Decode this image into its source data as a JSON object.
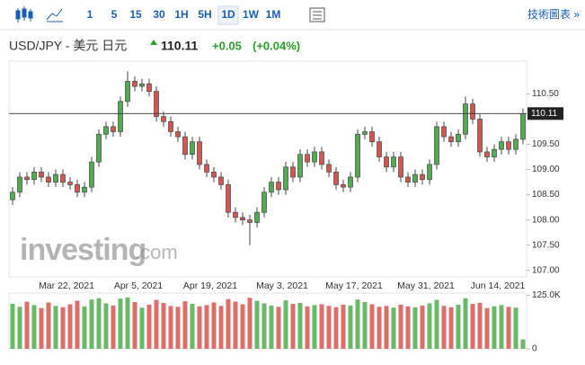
{
  "toolbar": {
    "intervals": [
      "1",
      "5",
      "15",
      "30",
      "1H",
      "5H",
      "1D",
      "1W",
      "1M"
    ],
    "selected": 6,
    "link": "技術圖表 »"
  },
  "chart_data": {
    "type": "candlestick",
    "title": "USD/JPY - 美元 日元",
    "price": 110.11,
    "change": "+0.05",
    "change_pct": "(+0.04%)",
    "watermark": {
      "brand": "investing",
      "suffix": ".com"
    },
    "up_color": "#4cae4c",
    "down_color": "#d9534f",
    "categories": [
      null,
      null,
      null,
      null,
      null,
      null,
      null,
      null,
      "Mar 22, 2021",
      null,
      null,
      null,
      null,
      null,
      null,
      null,
      null,
      null,
      "Apr 5, 2021",
      null,
      null,
      null,
      null,
      null,
      null,
      null,
      null,
      null,
      "Apr 19, 2021",
      null,
      null,
      null,
      null,
      null,
      null,
      null,
      null,
      null,
      "May 3, 2021",
      null,
      null,
      null,
      null,
      null,
      null,
      null,
      null,
      null,
      "May 17, 2021",
      null,
      null,
      null,
      null,
      null,
      null,
      null,
      null,
      null,
      "May 31, 2021",
      null,
      null,
      null,
      null,
      null,
      null,
      null,
      null,
      null,
      "Jun 14, 2021",
      null,
      null,
      null
    ],
    "open": [
      108.4,
      108.55,
      108.85,
      108.8,
      108.95,
      108.85,
      108.75,
      108.9,
      108.75,
      108.7,
      108.55,
      108.65,
      109.15,
      109.7,
      109.85,
      109.75,
      110.35,
      110.75,
      110.65,
      110.7,
      110.55,
      110.05,
      109.95,
      109.75,
      109.65,
      109.3,
      109.55,
      109.1,
      108.95,
      108.85,
      108.7,
      108.15,
      108.05,
      108.0,
      107.95,
      108.15,
      108.55,
      108.75,
      108.6,
      109.05,
      108.85,
      109.3,
      109.15,
      109.35,
      109.1,
      108.95,
      108.7,
      108.65,
      108.85,
      109.7,
      109.75,
      109.55,
      109.25,
      109.05,
      109.25,
      108.85,
      108.75,
      108.9,
      108.8,
      109.1,
      109.85,
      109.65,
      109.55,
      109.7,
      110.3,
      110.0,
      109.35,
      109.25,
      109.4,
      109.55,
      109.4,
      109.6
    ],
    "high": [
      108.65,
      108.95,
      108.95,
      109.05,
      109.05,
      108.95,
      109.0,
      109.0,
      108.85,
      108.8,
      108.75,
      109.25,
      109.8,
      109.95,
      109.95,
      110.45,
      110.95,
      110.85,
      110.8,
      110.8,
      110.65,
      110.15,
      110.05,
      109.85,
      109.75,
      109.65,
      109.65,
      109.2,
      109.05,
      108.95,
      108.8,
      108.25,
      108.15,
      108.1,
      108.25,
      108.65,
      108.85,
      108.85,
      109.15,
      109.15,
      109.4,
      109.4,
      109.45,
      109.45,
      109.2,
      109.05,
      108.8,
      108.95,
      109.8,
      109.85,
      109.85,
      109.65,
      109.35,
      109.35,
      109.35,
      108.95,
      109.0,
      109.0,
      109.2,
      109.95,
      109.95,
      109.75,
      109.8,
      110.45,
      110.4,
      110.1,
      109.45,
      109.5,
      109.65,
      109.65,
      109.7,
      110.21
    ],
    "low": [
      108.3,
      108.45,
      108.7,
      108.7,
      108.75,
      108.65,
      108.65,
      108.65,
      108.6,
      108.45,
      108.45,
      108.55,
      109.05,
      109.6,
      109.65,
      109.65,
      110.25,
      110.55,
      110.55,
      110.45,
      109.95,
      109.85,
      109.65,
      109.55,
      109.2,
      109.2,
      109.0,
      108.85,
      108.75,
      108.6,
      108.05,
      107.95,
      107.9,
      107.5,
      107.85,
      108.05,
      108.45,
      108.5,
      108.5,
      108.75,
      108.75,
      109.05,
      109.05,
      109.0,
      108.85,
      108.6,
      108.55,
      108.55,
      108.75,
      109.6,
      109.45,
      109.15,
      108.95,
      108.95,
      108.75,
      108.65,
      108.65,
      108.7,
      108.7,
      109.0,
      109.55,
      109.45,
      109.45,
      109.6,
      109.9,
      109.25,
      109.15,
      109.15,
      109.3,
      109.3,
      109.3,
      109.5
    ],
    "close": [
      108.55,
      108.85,
      108.8,
      108.95,
      108.85,
      108.75,
      108.9,
      108.75,
      108.7,
      108.55,
      108.65,
      109.15,
      109.7,
      109.85,
      109.75,
      110.35,
      110.75,
      110.65,
      110.7,
      110.55,
      110.05,
      109.95,
      109.75,
      109.65,
      109.3,
      109.55,
      109.1,
      108.95,
      108.85,
      108.7,
      108.15,
      108.05,
      108.0,
      107.95,
      108.15,
      108.55,
      108.75,
      108.6,
      109.05,
      108.85,
      109.3,
      109.15,
      109.35,
      109.1,
      108.95,
      108.7,
      108.65,
      108.85,
      109.7,
      109.75,
      109.55,
      109.25,
      109.05,
      109.25,
      108.85,
      108.75,
      108.9,
      108.8,
      109.1,
      109.85,
      109.65,
      109.55,
      109.7,
      110.3,
      110.0,
      109.35,
      109.25,
      109.4,
      109.55,
      109.4,
      109.6,
      110.11
    ],
    "volume": [
      105000,
      98000,
      110000,
      102000,
      95000,
      108000,
      100000,
      97000,
      104000,
      112000,
      99000,
      115000,
      118000,
      106000,
      101000,
      117000,
      120000,
      109000,
      96000,
      103000,
      114000,
      107000,
      100000,
      98000,
      111000,
      105000,
      99000,
      102000,
      108000,
      100000,
      116000,
      110000,
      104000,
      119000,
      112000,
      106000,
      101000,
      98000,
      113000,
      105000,
      107000,
      99000,
      102000,
      104000,
      100000,
      97000,
      103000,
      101000,
      115000,
      109000,
      104000,
      98000,
      100000,
      96000,
      103000,
      99000,
      97000,
      101000,
      106000,
      114000,
      100000,
      97000,
      103000,
      118000,
      105000,
      107000,
      95000,
      99000,
      102000,
      98000,
      96000,
      22000
    ],
    "ylim": [
      106.87,
      111.15
    ],
    "yticks": [
      {
        "value": 107,
        "label": "107.00"
      },
      {
        "value": 107.5,
        "label": "107.50"
      },
      {
        "value": 108,
        "label": "108.00"
      },
      {
        "value": 108.5,
        "label": "108.50"
      },
      {
        "value": 109,
        "label": "109.00"
      },
      {
        "value": 109.5,
        "label": "109.50"
      },
      {
        "value": 110.5,
        "label": "110.50"
      }
    ],
    "volume_lim": [
      0,
      130000
    ],
    "volume_ticks": [
      0,
      {
        "value": 125000,
        "label": "125.0K"
      }
    ]
  }
}
